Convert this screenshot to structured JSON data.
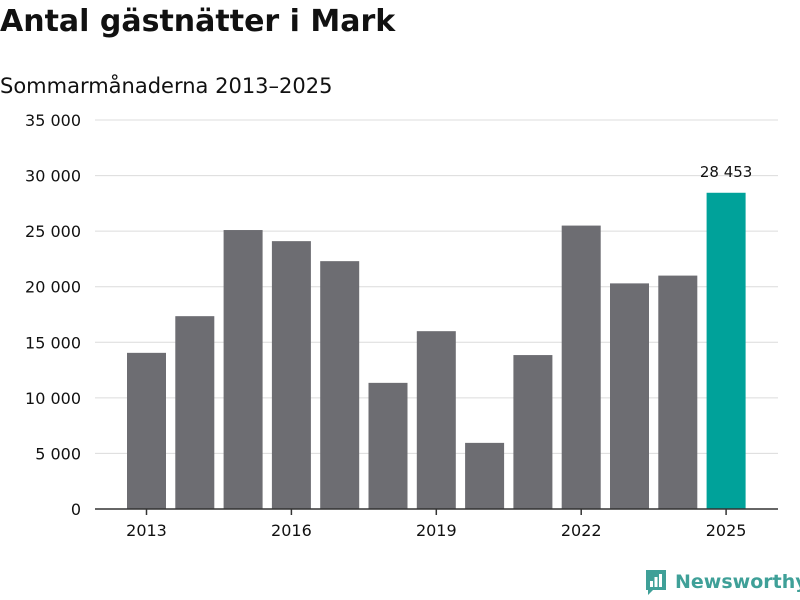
{
  "header": {
    "title": "Antal gästnätter i Mark",
    "subtitle": "Sommarmånaderna 2013–2025"
  },
  "brand": {
    "name": "Newsworthy"
  },
  "colors": {
    "bar": "#6d6d72",
    "highlight": "#00a29a",
    "grid": "#dcdcdc",
    "axis": "#333333",
    "text": "#111111",
    "brand": "#3fa098"
  },
  "chart_data": {
    "type": "bar",
    "categories": [
      "2013",
      "2014",
      "2015",
      "2016",
      "2017",
      "2018",
      "2019",
      "2020",
      "2021",
      "2022",
      "2023",
      "2024",
      "2025"
    ],
    "values": [
      14050,
      17350,
      25100,
      24100,
      22300,
      11350,
      16000,
      5950,
      13850,
      25500,
      20300,
      21000,
      28453
    ],
    "highlight_index": 12,
    "title": "Antal gästnätter i Mark",
    "subtitle": "Sommarmånaderna 2013–2025",
    "ylim": [
      0,
      35000
    ],
    "yticks": [
      0,
      5000,
      10000,
      15000,
      20000,
      25000,
      30000,
      35000
    ],
    "ytick_labels": [
      "0",
      "5 000",
      "10 000",
      "15 000",
      "20 000",
      "25 000",
      "30 000",
      "35 000"
    ],
    "xtick_labels": [
      "2013",
      "2016",
      "2019",
      "2022",
      "2025"
    ],
    "annotations": [
      {
        "category": "2025",
        "label": "28 453"
      }
    ],
    "grid": true,
    "legend": "none"
  }
}
